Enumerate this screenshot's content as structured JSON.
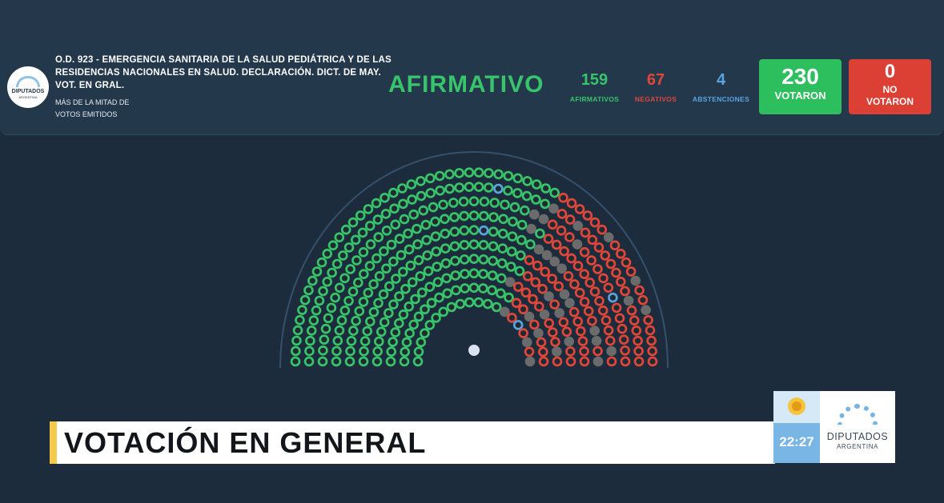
{
  "header": {
    "title": "O.D. 923 - EMERGENCIA SANITARIA DE LA SALUD PEDIÁTRICA Y DE LAS RESIDENCIAS NACIONALES EN SALUD. DECLARACIÓN. DICT. DE MAY. VOT. EN GRAL.",
    "subtitle_line1": "MÁS DE LA MITAD DE",
    "subtitle_line2": "VOTOS EMITIDOS",
    "logo_line1": "DIPUTADOS",
    "logo_line2": "ARGENTINA",
    "result": "AFIRMATIVO"
  },
  "counts": {
    "afirmativos": {
      "value": "159",
      "label": "AFIRMATIVOS"
    },
    "negativos": {
      "value": "67",
      "label": "NEGATIVOS"
    },
    "abstenciones": {
      "value": "4",
      "label": "ABSTENCIONES"
    }
  },
  "boxes": {
    "votaron": {
      "value": "230",
      "label": "VOTARON"
    },
    "no_votaron": {
      "value": "0",
      "label": "NO VOTARON"
    }
  },
  "colors": {
    "afirmativo": "#37c46b",
    "negativo": "#e0473a",
    "abstencion": "#5aa4e0",
    "ausente": "#6b6b6b",
    "votaron_box": "#2dbe5e",
    "no_votaron_box": "#dc3f33"
  },
  "hemicycle": {
    "rows": [
      20,
      25,
      29,
      33,
      37,
      41,
      45,
      47,
      54,
      58
    ],
    "seats": {
      "afirmativo": 159,
      "negativo": 67,
      "abstencion": 4,
      "ausente": 27
    }
  },
  "lower_third": {
    "text": "VOTACIÓN EN GENERAL",
    "time": "22:27",
    "brand_line1": "DIPUTADOS",
    "brand_line2": "ARGENTINA"
  }
}
